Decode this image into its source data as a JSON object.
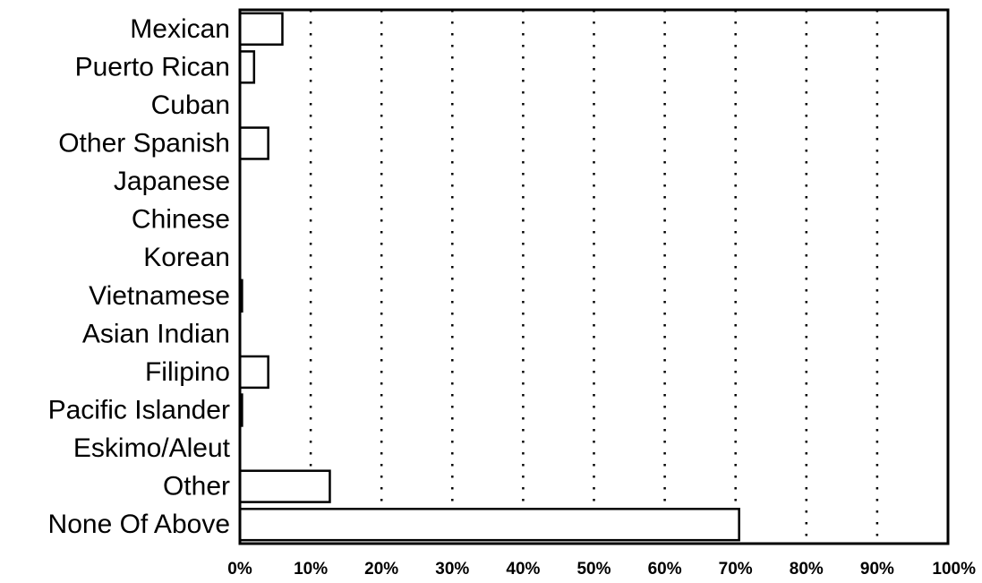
{
  "chart_data": {
    "type": "bar",
    "orientation": "horizontal",
    "categories": [
      "Mexican",
      "Puerto Rican",
      "Cuban",
      "Other Spanish",
      "Japanese",
      "Chinese",
      "Korean",
      "Vietnamese",
      "Asian Indian",
      "Filipino",
      "Pacific Islander",
      "Eskimo/Aleut",
      "Other",
      "None Of Above"
    ],
    "values": [
      6,
      2,
      0,
      4,
      0,
      0,
      0,
      0.3,
      0,
      4,
      0.3,
      0,
      12.7,
      70.5
    ],
    "x_ticks": [
      "0%",
      "10%",
      "20%",
      "30%",
      "40%",
      "50%",
      "60%",
      "70%",
      "80%",
      "90%",
      "100%"
    ],
    "xlim": [
      0,
      100
    ],
    "title": "",
    "xlabel": "",
    "ylabel": "",
    "grid": "vertical dotted",
    "legend": "none",
    "colors": {
      "bar_fill": "#ffffff",
      "bar_stroke": "#000000",
      "axis": "#000000",
      "grid": "#000000"
    }
  }
}
